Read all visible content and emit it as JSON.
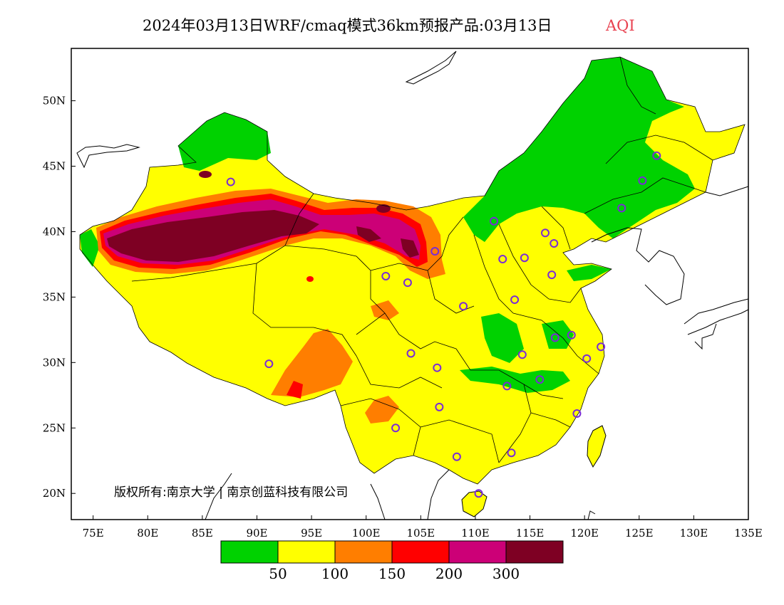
{
  "title": {
    "main": "2024年03月13日WRF/cmaq模式36km预报产品:03月13日",
    "variable": "AQI"
  },
  "axes": {
    "x_ticks": [
      "75E",
      "80E",
      "85E",
      "90E",
      "95E",
      "100E",
      "105E",
      "110E",
      "115E",
      "120E",
      "125E",
      "130E",
      "135E"
    ],
    "y_ticks": [
      "50N",
      "45N",
      "40N",
      "35N",
      "30N",
      "25N",
      "20N"
    ],
    "lon_range": [
      73,
      135
    ],
    "lat_range": [
      18,
      54
    ]
  },
  "legend": {
    "colors": [
      "#00d200",
      "#ffff00",
      "#ff7e00",
      "#ff0000",
      "#cc0077",
      "#7e0023"
    ],
    "labels": [
      "50",
      "100",
      "150",
      "200",
      "300"
    ]
  },
  "copyright": "版权所有:南京大学 | 南京创蓝科技有限公司",
  "stations": [
    {
      "lon": 87.6,
      "lat": 43.8
    },
    {
      "lon": 91.1,
      "lat": 29.9
    },
    {
      "lon": 101.8,
      "lat": 36.6
    },
    {
      "lon": 103.8,
      "lat": 36.1
    },
    {
      "lon": 106.3,
      "lat": 38.5
    },
    {
      "lon": 111.7,
      "lat": 40.8
    },
    {
      "lon": 112.5,
      "lat": 37.9
    },
    {
      "lon": 114.5,
      "lat": 38.0
    },
    {
      "lon": 116.4,
      "lat": 39.9
    },
    {
      "lon": 117.2,
      "lat": 39.1
    },
    {
      "lon": 117.0,
      "lat": 36.7
    },
    {
      "lon": 113.6,
      "lat": 34.8
    },
    {
      "lon": 108.9,
      "lat": 34.3
    },
    {
      "lon": 104.1,
      "lat": 30.7
    },
    {
      "lon": 106.5,
      "lat": 29.6
    },
    {
      "lon": 106.7,
      "lat": 26.6
    },
    {
      "lon": 102.7,
      "lat": 25.0
    },
    {
      "lon": 108.3,
      "lat": 22.8
    },
    {
      "lon": 113.3,
      "lat": 23.1
    },
    {
      "lon": 110.3,
      "lat": 20.0
    },
    {
      "lon": 112.9,
      "lat": 28.2
    },
    {
      "lon": 114.3,
      "lat": 30.6
    },
    {
      "lon": 115.9,
      "lat": 28.7
    },
    {
      "lon": 117.3,
      "lat": 31.9
    },
    {
      "lon": 118.8,
      "lat": 32.1
    },
    {
      "lon": 120.2,
      "lat": 30.3
    },
    {
      "lon": 121.5,
      "lat": 31.2
    },
    {
      "lon": 119.3,
      "lat": 26.1
    },
    {
      "lon": 123.4,
      "lat": 41.8
    },
    {
      "lon": 125.3,
      "lat": 43.9
    },
    {
      "lon": 126.6,
      "lat": 45.8
    }
  ]
}
